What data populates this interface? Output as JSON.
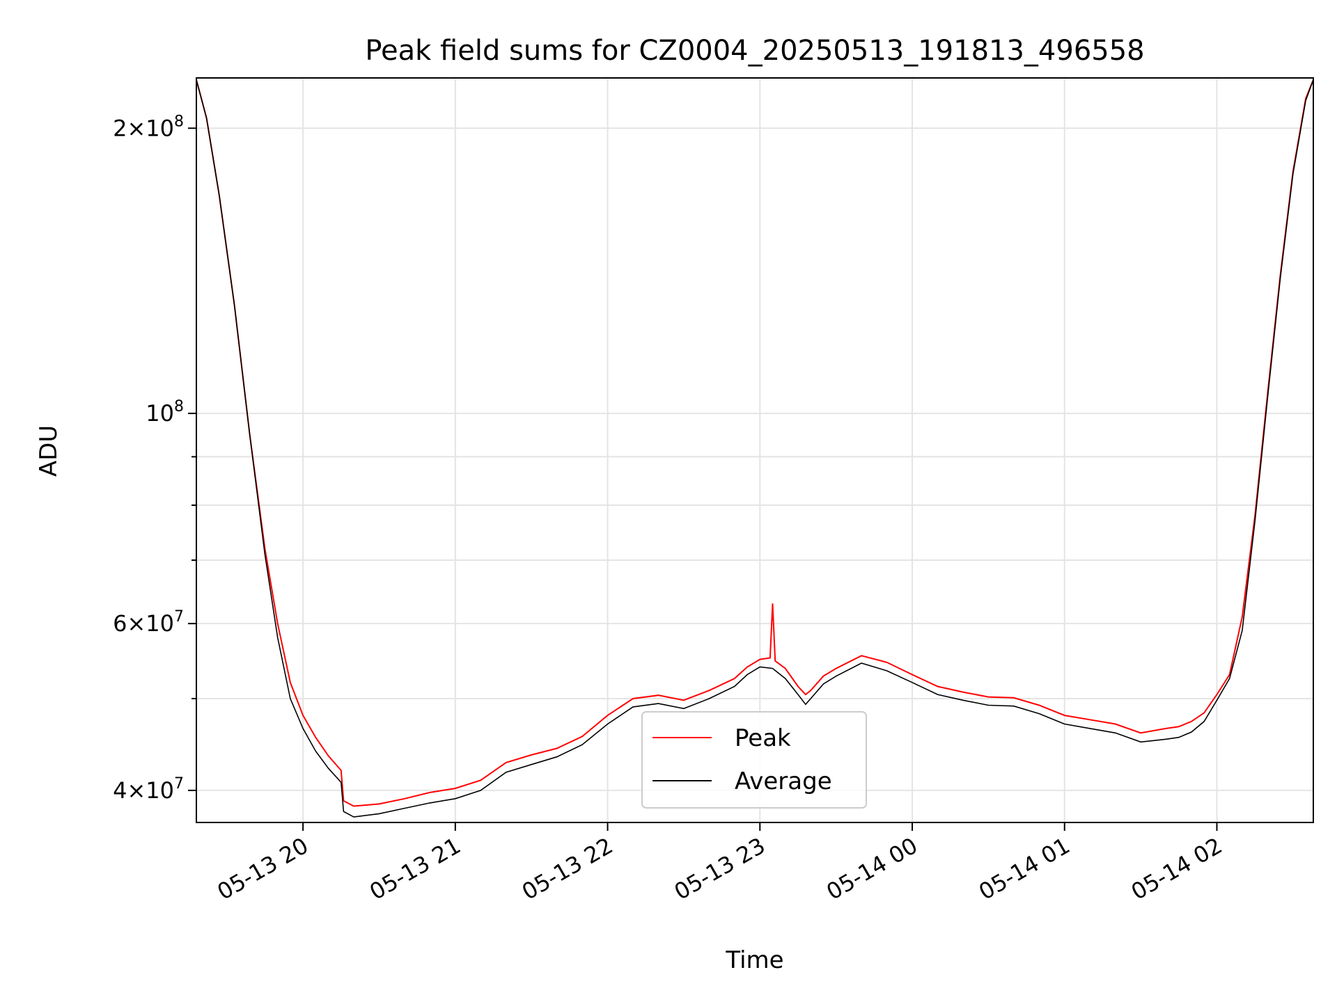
{
  "chart_data": {
    "type": "line",
    "title": "Peak field sums for CZ0004_20250513_191813_496558",
    "xlabel": "Time",
    "ylabel": "ADU",
    "y_scale": "log",
    "xlim": [
      "2025-05-13 19:18",
      "2025-05-14 02:38"
    ],
    "ylim": [
      37000000,
      226000000
    ],
    "x_ticks": [
      {
        "value": "2025-05-13 20:00",
        "label": "05-13 20"
      },
      {
        "value": "2025-05-13 21:00",
        "label": "05-13 21"
      },
      {
        "value": "2025-05-13 22:00",
        "label": "05-13 22"
      },
      {
        "value": "2025-05-13 23:00",
        "label": "05-13 23"
      },
      {
        "value": "2025-05-14 00:00",
        "label": "05-14 00"
      },
      {
        "value": "2025-05-14 01:00",
        "label": "05-14 01"
      },
      {
        "value": "2025-05-14 02:00",
        "label": "05-14 02"
      }
    ],
    "y_ticks": [
      {
        "value": 200000000,
        "mantissa": "2",
        "exponent": "8"
      },
      {
        "value": 100000000,
        "mantissa": "",
        "exponent": "8"
      },
      {
        "value": 60000000,
        "mantissa": "6",
        "exponent": "7"
      },
      {
        "value": 40000000,
        "mantissa": "4",
        "exponent": "7"
      }
    ],
    "y_minor_ticks": [
      50000000,
      70000000,
      80000000,
      90000000
    ],
    "grid": true,
    "legend": {
      "position": "lower-center"
    },
    "series": [
      {
        "name": "Peak",
        "color": "#ff0000",
        "x": [
          "2025-05-13 19:18",
          "2025-05-13 19:22",
          "2025-05-13 19:27",
          "2025-05-13 19:33",
          "2025-05-13 19:39",
          "2025-05-13 19:45",
          "2025-05-13 19:50",
          "2025-05-13 19:55",
          "2025-05-13 20:00",
          "2025-05-13 20:05",
          "2025-05-13 20:10",
          "2025-05-13 20:15",
          "2025-05-13 20:16",
          "2025-05-13 20:20",
          "2025-05-13 20:30",
          "2025-05-13 20:40",
          "2025-05-13 20:50",
          "2025-05-13 21:00",
          "2025-05-13 21:10",
          "2025-05-13 21:20",
          "2025-05-13 21:30",
          "2025-05-13 21:40",
          "2025-05-13 21:50",
          "2025-05-13 22:00",
          "2025-05-13 22:10",
          "2025-05-13 22:20",
          "2025-05-13 22:30",
          "2025-05-13 22:40",
          "2025-05-13 22:50",
          "2025-05-13 22:55",
          "2025-05-13 23:00",
          "2025-05-13 23:04",
          "2025-05-13 23:05",
          "2025-05-13 23:06",
          "2025-05-13 23:10",
          "2025-05-13 23:15",
          "2025-05-13 23:18",
          "2025-05-13 23:20",
          "2025-05-13 23:25",
          "2025-05-13 23:30",
          "2025-05-13 23:40",
          "2025-05-13 23:50",
          "2025-05-14 00:00",
          "2025-05-14 00:10",
          "2025-05-14 00:20",
          "2025-05-14 00:30",
          "2025-05-14 00:40",
          "2025-05-14 00:50",
          "2025-05-14 01:00",
          "2025-05-14 01:10",
          "2025-05-14 01:20",
          "2025-05-14 01:30",
          "2025-05-14 01:40",
          "2025-05-14 01:45",
          "2025-05-14 01:50",
          "2025-05-14 01:55",
          "2025-05-14 02:00",
          "2025-05-14 02:05",
          "2025-05-14 02:10",
          "2025-05-14 02:15",
          "2025-05-14 02:20",
          "2025-05-14 02:25",
          "2025-05-14 02:30",
          "2025-05-14 02:35",
          "2025-05-14 02:38"
        ],
        "y": [
          225000000,
          205000000,
          170000000,
          130000000,
          95000000,
          72000000,
          60000000,
          52000000,
          48000000,
          45500000,
          43500000,
          42000000,
          39000000,
          38500000,
          38700000,
          39200000,
          39800000,
          40200000,
          41000000,
          42800000,
          43600000,
          44300000,
          45600000,
          48000000,
          50000000,
          50400000,
          49800000,
          51000000,
          52500000,
          54000000,
          55000000,
          55200000,
          63000000,
          54800000,
          53800000,
          51500000,
          50500000,
          51000000,
          52800000,
          53800000,
          55500000,
          54600000,
          53000000,
          51500000,
          50800000,
          50200000,
          50100000,
          49200000,
          48000000,
          47500000,
          47000000,
          46000000,
          46500000,
          46700000,
          47300000,
          48300000,
          50500000,
          53000000,
          61000000,
          78000000,
          105000000,
          140000000,
          180000000,
          215000000,
          225000000
        ]
      },
      {
        "name": "Average",
        "color": "#000000",
        "x": [
          "2025-05-13 19:18",
          "2025-05-13 19:22",
          "2025-05-13 19:27",
          "2025-05-13 19:33",
          "2025-05-13 19:39",
          "2025-05-13 19:45",
          "2025-05-13 19:50",
          "2025-05-13 19:55",
          "2025-05-13 20:00",
          "2025-05-13 20:05",
          "2025-05-13 20:10",
          "2025-05-13 20:15",
          "2025-05-13 20:16",
          "2025-05-13 20:20",
          "2025-05-13 20:30",
          "2025-05-13 20:40",
          "2025-05-13 20:50",
          "2025-05-13 21:00",
          "2025-05-13 21:10",
          "2025-05-13 21:20",
          "2025-05-13 21:30",
          "2025-05-13 21:40",
          "2025-05-13 21:50",
          "2025-05-13 22:00",
          "2025-05-13 22:10",
          "2025-05-13 22:20",
          "2025-05-13 22:30",
          "2025-05-13 22:40",
          "2025-05-13 22:50",
          "2025-05-13 22:55",
          "2025-05-13 23:00",
          "2025-05-13 23:05",
          "2025-05-13 23:10",
          "2025-05-13 23:15",
          "2025-05-13 23:18",
          "2025-05-13 23:20",
          "2025-05-13 23:25",
          "2025-05-13 23:30",
          "2025-05-13 23:40",
          "2025-05-13 23:50",
          "2025-05-14 00:00",
          "2025-05-14 00:10",
          "2025-05-14 00:20",
          "2025-05-14 00:30",
          "2025-05-14 00:40",
          "2025-05-14 00:50",
          "2025-05-14 01:00",
          "2025-05-14 01:10",
          "2025-05-14 01:20",
          "2025-05-14 01:30",
          "2025-05-14 01:40",
          "2025-05-14 01:45",
          "2025-05-14 01:50",
          "2025-05-14 01:55",
          "2025-05-14 02:00",
          "2025-05-14 02:05",
          "2025-05-14 02:10",
          "2025-05-14 02:15",
          "2025-05-14 02:20",
          "2025-05-14 02:25",
          "2025-05-14 02:30",
          "2025-05-14 02:35",
          "2025-05-14 02:38"
        ],
        "y": [
          225000000,
          205000000,
          170000000,
          130000000,
          95000000,
          71000000,
          58000000,
          50000000,
          46500000,
          44000000,
          42200000,
          40800000,
          38000000,
          37500000,
          37800000,
          38300000,
          38800000,
          39200000,
          40000000,
          41800000,
          42600000,
          43400000,
          44700000,
          47000000,
          49000000,
          49400000,
          48800000,
          50000000,
          51500000,
          53000000,
          54000000,
          53800000,
          52500000,
          50500000,
          49300000,
          50000000,
          51800000,
          52800000,
          54500000,
          53500000,
          52000000,
          50500000,
          49800000,
          49200000,
          49100000,
          48200000,
          47000000,
          46500000,
          46000000,
          45000000,
          45300000,
          45500000,
          46100000,
          47300000,
          49800000,
          52500000,
          59000000,
          77000000,
          104000000,
          139000000,
          179000000,
          214000000,
          225000000
        ]
      }
    ]
  }
}
